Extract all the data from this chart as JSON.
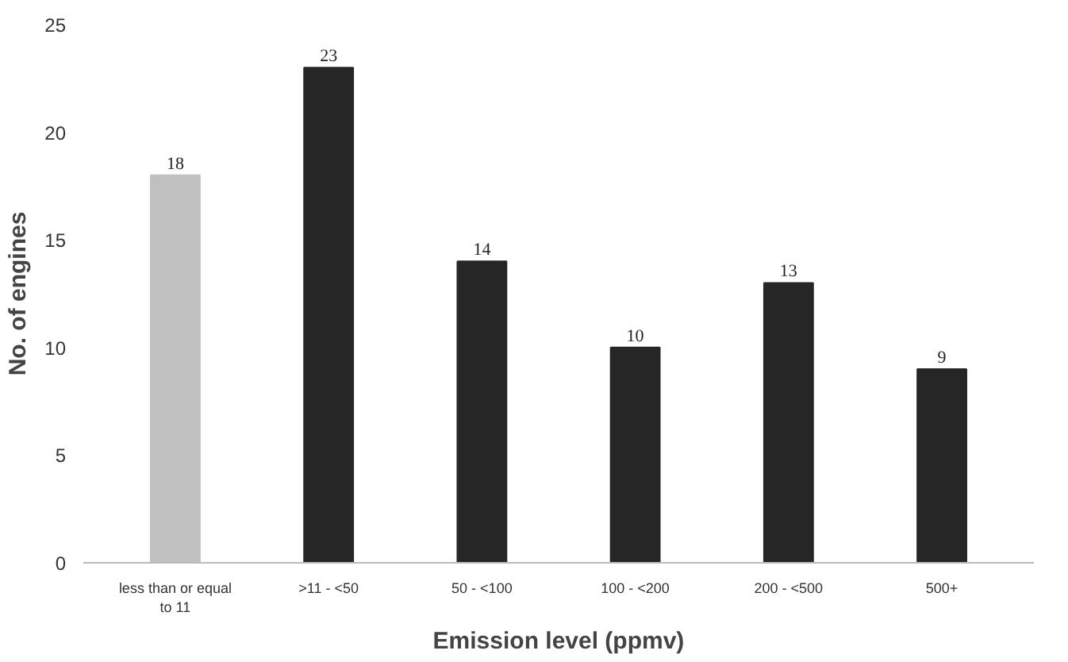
{
  "chart_data": {
    "type": "bar",
    "xlabel": "Emission level (ppmv)",
    "ylabel": "No. of engines",
    "categories": [
      "less than or equal to 11",
      ">11 - <50",
      "50 - <100",
      "100 - <200",
      "200 - <500",
      "500+"
    ],
    "values": [
      18,
      23,
      14,
      10,
      13,
      9
    ],
    "colors": [
      "#c0c0c0",
      "#262626",
      "#262626",
      "#262626",
      "#262626",
      "#262626"
    ],
    "ylim": [
      0,
      25
    ],
    "yticks": [
      0,
      5,
      10,
      15,
      20,
      25
    ],
    "grid": false,
    "data_labels": true
  }
}
